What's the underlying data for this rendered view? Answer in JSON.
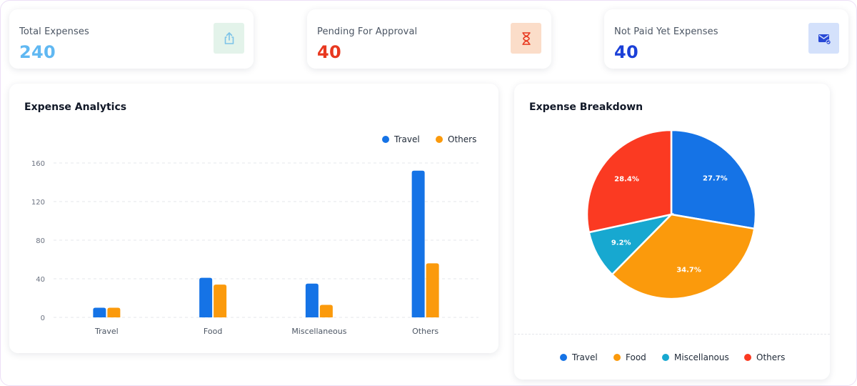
{
  "stats": [
    {
      "label": "Total Expenses",
      "value": "240",
      "value_color": "#60b8f2",
      "icon": "share-upload-icon",
      "icon_bg": "#e3f3ea",
      "icon_color": "#7cc3e8"
    },
    {
      "label": "Pending For Approval",
      "value": "40",
      "value_color": "#e8381f",
      "icon": "hourglass-icon",
      "icon_bg": "#fbddc9",
      "icon_color": "#e8381f"
    },
    {
      "label": "Not Paid Yet Expenses",
      "value": "40",
      "value_color": "#1b40d8",
      "icon": "mail-check-icon",
      "icon_bg": "#d4e1fb",
      "icon_color": "#2848d6"
    }
  ],
  "analytics": {
    "title": "Expense Analytics",
    "legend": [
      {
        "name": "Travel",
        "color": "#1573e6"
      },
      {
        "name": "Others",
        "color": "#fb9a0c"
      }
    ]
  },
  "breakdown": {
    "title": "Expense Breakdown",
    "legend": [
      {
        "name": "Travel",
        "color": "#1573e6"
      },
      {
        "name": "Food",
        "color": "#fb9a0c"
      },
      {
        "name": "Miscellanous",
        "color": "#17a8d0"
      },
      {
        "name": "Others",
        "color": "#fb3a22"
      }
    ]
  },
  "chart_data": [
    {
      "type": "bar",
      "title": "Expense Analytics",
      "categories": [
        "Travel",
        "Food",
        "Miscellaneous",
        "Others"
      ],
      "series": [
        {
          "name": "Travel",
          "values": [
            10,
            41,
            35,
            152
          ],
          "color": "#1573e6"
        },
        {
          "name": "Others",
          "values": [
            10,
            34,
            13,
            56
          ],
          "color": "#fb9a0c"
        }
      ],
      "yticks": [
        "0",
        "40",
        "80",
        "120",
        "160"
      ],
      "ylim": [
        0,
        160
      ],
      "grid": true,
      "legend_position": "top-right"
    },
    {
      "type": "pie",
      "title": "Expense Breakdown",
      "labels": [
        "Travel",
        "Food",
        "Miscellanous",
        "Others"
      ],
      "values": [
        27.7,
        34.7,
        9.2,
        28.4
      ],
      "value_labels": [
        "27.7%",
        "34.7%",
        "9.2%",
        "28.4%"
      ],
      "colors": [
        "#1573e6",
        "#fb9a0c",
        "#17a8d0",
        "#fb3a22"
      ],
      "legend_position": "bottom"
    }
  ]
}
